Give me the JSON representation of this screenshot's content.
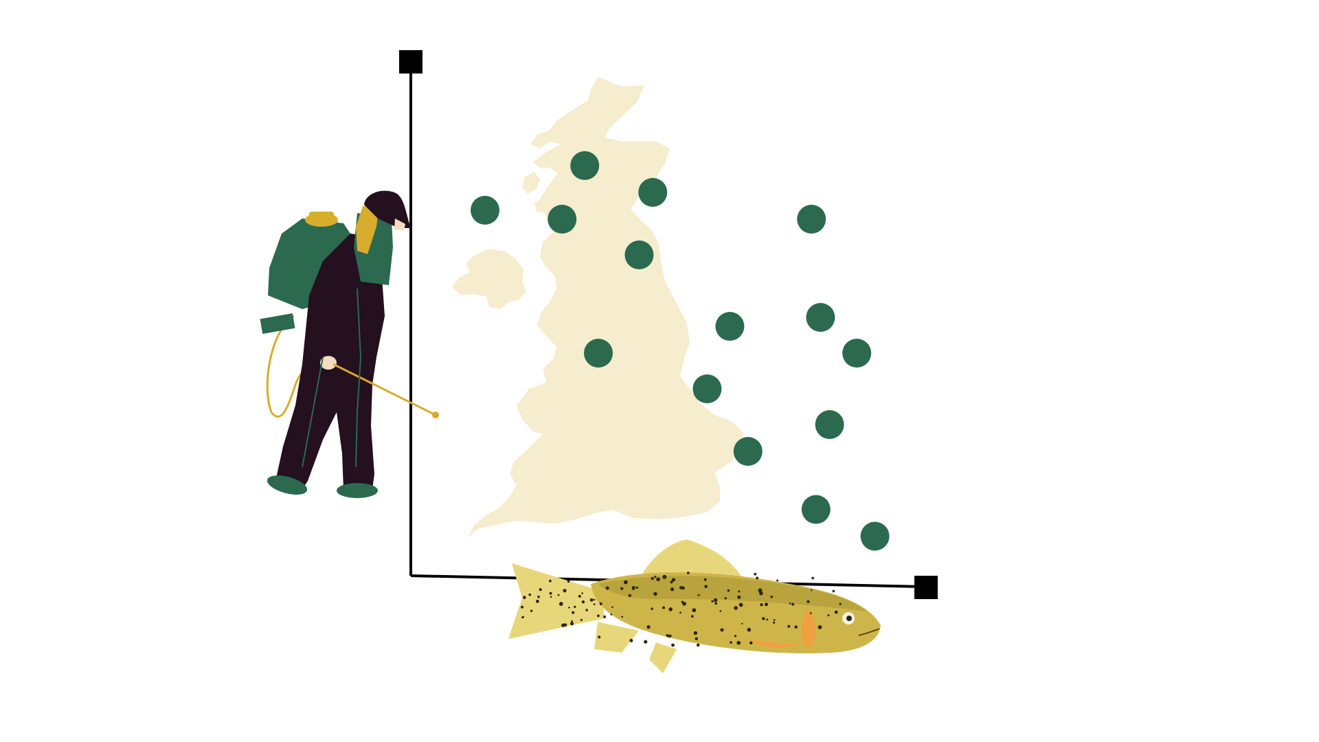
{
  "chart_data": {
    "type": "scatter",
    "title": "",
    "xlabel": "",
    "ylabel": "",
    "grid": false,
    "legend": "none",
    "points": [
      {
        "x": 3.2,
        "y": 8.6
      },
      {
        "x": 4.7,
        "y": 8.0
      },
      {
        "x": 1.0,
        "y": 7.6
      },
      {
        "x": 2.7,
        "y": 7.4
      },
      {
        "x": 8.2,
        "y": 7.4
      },
      {
        "x": 4.4,
        "y": 6.6
      },
      {
        "x": 6.4,
        "y": 5.0
      },
      {
        "x": 8.4,
        "y": 5.2
      },
      {
        "x": 3.5,
        "y": 4.4
      },
      {
        "x": 5.9,
        "y": 3.6
      },
      {
        "x": 9.2,
        "y": 4.4
      },
      {
        "x": 8.6,
        "y": 2.8
      },
      {
        "x": 6.8,
        "y": 2.2
      },
      {
        "x": 8.3,
        "y": 0.9
      },
      {
        "x": 9.6,
        "y": 0.3
      }
    ],
    "xlim": [
      0,
      10
    ],
    "ylim": [
      0,
      10
    ]
  },
  "colors": {
    "dot": "#2b6a4f",
    "axis": "#000000",
    "map": "#f6ecce",
    "fish_body": "#cdb54a",
    "fish_back": "#b8a33c",
    "fish_fin": "#e8d77a",
    "fish_accent": "#f0a040",
    "worker_suit": "#24101e",
    "backpack": "#2b6a4f",
    "hose": "#d8ac2c"
  },
  "illustrations": {
    "map": "uk-map",
    "worker": "pesticide-sprayer-worker",
    "fish": "trout-fish"
  }
}
